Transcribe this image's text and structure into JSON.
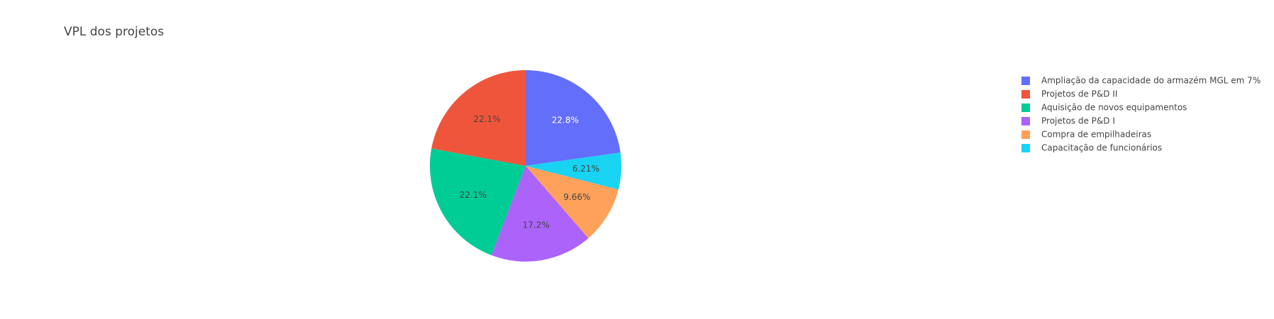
{
  "chart_data": {
    "type": "pie",
    "title": "VPL dos projetos",
    "direction": "clockwise",
    "start_angle_deg": 90,
    "legend_placement": "right",
    "slices": [
      {
        "label": "Ampliação da capacidade do armazém MGL em 7%",
        "value": 22.8,
        "text": "22.8%",
        "color": "#636efa",
        "label_color": "#ffffff"
      },
      {
        "label": "Capacitação de funcionários",
        "value": 6.21,
        "text": "6.21%",
        "color": "#19d3f3",
        "label_color": "#444444"
      },
      {
        "label": "Compra de empilhadeiras",
        "value": 9.66,
        "text": "9.66%",
        "color": "#ffa15a",
        "label_color": "#444444"
      },
      {
        "label": "Projetos de P&D I",
        "value": 17.2,
        "text": "17.2%",
        "color": "#ab63fa",
        "label_color": "#444444"
      },
      {
        "label": "Aquisição de novos equipamentos",
        "value": 22.1,
        "text": "22.1%",
        "color": "#00cc96",
        "label_color": "#444444"
      },
      {
        "label": "Projetos de P&D II",
        "value": 22.1,
        "text": "22.1%",
        "color": "#ef553b",
        "label_color": "#444444"
      }
    ],
    "legend_order": [
      "Ampliação da capacidade do armazém MGL em 7%",
      "Projetos de P&D II",
      "Aquisição de novos equipamentos",
      "Projetos de P&D I",
      "Compra de empilhadeiras",
      "Capacitação de funcionários"
    ]
  }
}
